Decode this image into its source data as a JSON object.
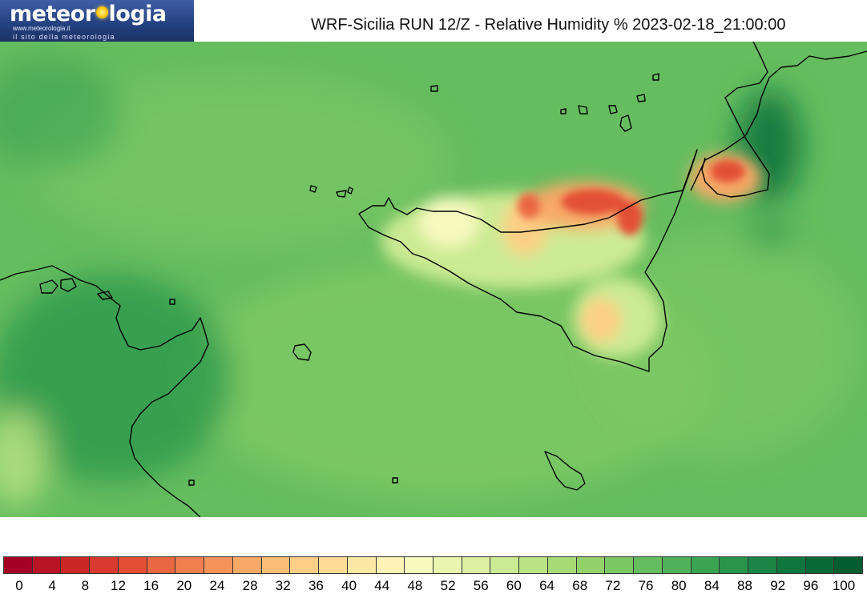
{
  "header": {
    "logo_word_1": "meteor",
    "logo_word_2": "logia",
    "logo_url": "www.meteorologia.it",
    "logo_tagline": "il sito della meteorologia",
    "title": "WRF-Sicilia RUN 12/Z - Relative Humidity % 2023-02-18_21:00:00"
  },
  "legend": {
    "tick_labels": [
      "0",
      "4",
      "8",
      "12",
      "16",
      "20",
      "24",
      "28",
      "32",
      "36",
      "40",
      "44",
      "48",
      "52",
      "56",
      "60",
      "64",
      "68",
      "72",
      "76",
      "80",
      "84",
      "88",
      "92",
      "96",
      "100"
    ],
    "colors": [
      "#a50026",
      "#b91326",
      "#cc2627",
      "#d83a2f",
      "#e34f34",
      "#eb6642",
      "#f27d4f",
      "#f5935b",
      "#f8a968",
      "#fbbe77",
      "#fdcf86",
      "#fddc95",
      "#fee8a6",
      "#fef3b6",
      "#f7f9be",
      "#eaf5b0",
      "#dcefa2",
      "#ccea93",
      "#bae384",
      "#a7db76",
      "#93d26a",
      "#7dc865",
      "#66bd5f",
      "#4fb25a",
      "#3aa453",
      "#28954b",
      "#1a8544",
      "#0f763d",
      "#086937",
      "#025e31"
    ]
  },
  "map": {
    "colors": {
      "background": "#66bd5f",
      "coast": "#000000",
      "dry_core": "#e34f34",
      "dry_mid": "#f8a968",
      "dry_edge": "#fee8a6",
      "moist": "#1a8544"
    }
  }
}
